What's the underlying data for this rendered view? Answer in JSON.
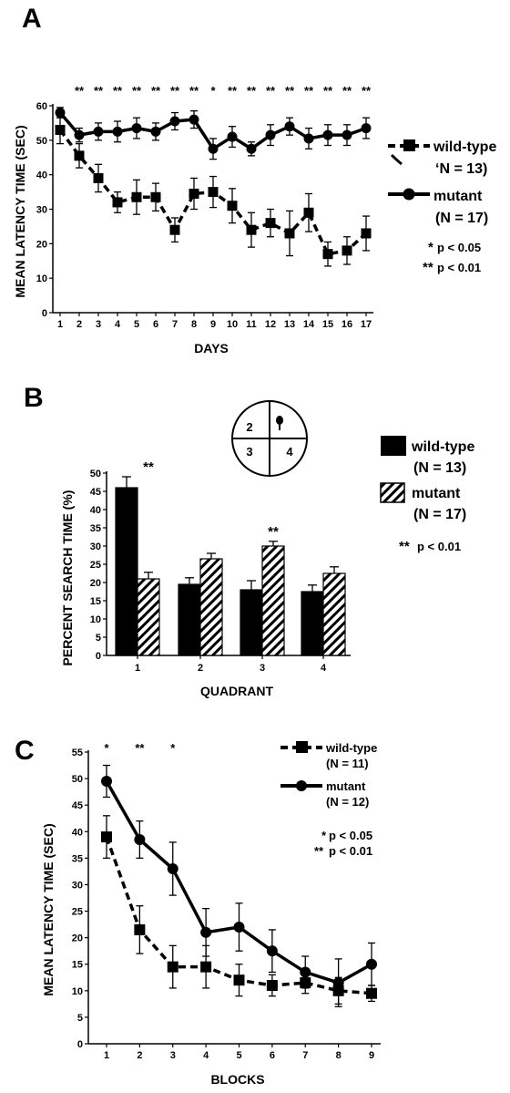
{
  "chart_data": [
    {
      "panel": "A",
      "type": "line",
      "xlabel": "DAYS",
      "ylabel": "MEAN LATENCY TIME (SEC)",
      "x": [
        1,
        2,
        3,
        4,
        5,
        6,
        7,
        8,
        9,
        10,
        11,
        12,
        13,
        14,
        15,
        16,
        17
      ],
      "ylim": [
        0,
        60
      ],
      "yticks": [
        0,
        10,
        20,
        30,
        40,
        50,
        60
      ],
      "series": [
        {
          "name": "wild-type",
          "n_label": "‘N = 13)",
          "values": [
            53,
            45.5,
            39,
            32,
            33.5,
            33.5,
            24,
            34.5,
            35,
            31,
            24,
            26,
            23,
            29,
            17,
            18,
            23
          ],
          "errors": [
            4,
            3.5,
            4,
            3,
            5,
            4,
            3.5,
            4.5,
            4.5,
            5,
            5,
            4,
            6.5,
            5.5,
            3.5,
            4,
            5
          ]
        },
        {
          "name": "mutant",
          "n_label": "(N = 17)",
          "values": [
            58,
            51.5,
            52.5,
            52.5,
            53.5,
            52.5,
            55.5,
            56,
            47.5,
            51,
            47.5,
            51.5,
            54,
            50.5,
            51.5,
            51.5,
            53.5
          ],
          "errors": [
            1.5,
            2,
            2.5,
            3,
            3,
            2.5,
            2.5,
            2.5,
            3,
            3,
            2,
            3,
            2.5,
            3,
            3,
            3,
            3
          ]
        }
      ],
      "significance": [
        "",
        "**",
        "**",
        "**",
        "**",
        "**",
        "**",
        "**",
        "*",
        "**",
        "**",
        "**",
        "**",
        "**",
        "**",
        "**",
        "**"
      ],
      "sig_legend": [
        {
          "stars": "*",
          "text": "p < 0.05"
        },
        {
          "stars": "**",
          "text": "p < 0.01"
        }
      ]
    },
    {
      "panel": "B",
      "type": "bar",
      "xlabel": "QUADRANT",
      "ylabel": "PERCENT SEARCH TIME (%)",
      "categories": [
        "1",
        "2",
        "3",
        "4"
      ],
      "ylim": [
        0,
        50
      ],
      "yticks": [
        0,
        5,
        10,
        15,
        20,
        25,
        30,
        35,
        40,
        45,
        50
      ],
      "series": [
        {
          "name": "wild-type",
          "n_label": "(N = 13)",
          "values": [
            46,
            19.5,
            18,
            17.5
          ],
          "errors": [
            3,
            1.8,
            2.5,
            1.8
          ]
        },
        {
          "name": "mutant",
          "n_label": "(N = 17)",
          "values": [
            21,
            26.5,
            30,
            22.5
          ],
          "errors": [
            1.8,
            1.5,
            1.3,
            1.8
          ]
        }
      ],
      "significance": [
        "**",
        "",
        "**",
        ""
      ],
      "sig_legend": [
        {
          "stars": "**",
          "text": "p < 0.01"
        }
      ],
      "pool_diagram": {
        "quadrants": [
          "2",
          "",
          "3",
          "4"
        ]
      }
    },
    {
      "panel": "C",
      "type": "line",
      "xlabel": "BLOCKS",
      "ylabel": "MEAN LATENCY TIME (SEC)",
      "x": [
        1,
        2,
        3,
        4,
        5,
        6,
        7,
        8,
        9
      ],
      "ylim": [
        0,
        55
      ],
      "yticks": [
        0,
        5,
        10,
        15,
        20,
        25,
        30,
        35,
        40,
        45,
        50,
        55
      ],
      "series": [
        {
          "name": "wild-type",
          "n_label": "(N = 11)",
          "values": [
            39,
            21.5,
            14.5,
            14.5,
            12,
            11,
            11.5,
            10,
            9.5
          ],
          "errors": [
            4,
            4.5,
            4,
            4,
            3,
            2,
            2,
            2.5,
            1.5
          ]
        },
        {
          "name": "mutant",
          "n_label": "(N = 12)",
          "values": [
            49.5,
            38.5,
            33,
            21,
            22,
            17.5,
            13.5,
            11.5,
            15
          ],
          "errors": [
            3,
            3.5,
            5,
            4.5,
            4.5,
            4,
            3,
            4.5,
            4
          ]
        }
      ],
      "significance": [
        "*",
        "**",
        "*",
        "",
        "",
        "",
        "",
        "",
        ""
      ],
      "sig_legend": [
        {
          "stars": "*",
          "text": "p < 0.05"
        },
        {
          "stars": "**",
          "text": "p < 0.01"
        }
      ]
    }
  ],
  "panels": {
    "A": {
      "letter": "A"
    },
    "B": {
      "letter": "B"
    },
    "C": {
      "letter": "C"
    }
  }
}
